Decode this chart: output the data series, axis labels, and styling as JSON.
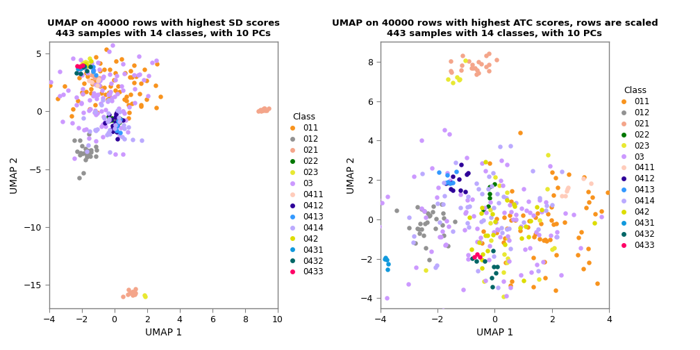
{
  "title1": "UMAP on 40000 rows with highest SD scores\n443 samples with 14 classes, with 10 PCs",
  "title2": "UMAP on 40000 rows with highest ATC scores, rows are scaled\n443 samples with 14 classes, with 10 PCs",
  "xlabel": "UMAP 1",
  "ylabel": "UMAP 2",
  "classes": [
    "011",
    "012",
    "021",
    "022",
    "023",
    "03",
    "0411",
    "0412",
    "0413",
    "0414",
    "042",
    "0431",
    "0432",
    "0433"
  ],
  "colors": {
    "011": "#F8931D",
    "012": "#929292",
    "021": "#F4A58A",
    "022": "#007700",
    "023": "#E8E832",
    "03": "#CC99FF",
    "0411": "#FFCCBB",
    "0412": "#2E0099",
    "0413": "#3399FF",
    "0414": "#BBAAFF",
    "042": "#DDDD00",
    "0431": "#1199DD",
    "0432": "#006666",
    "0433": "#FF0066"
  },
  "plot1": {
    "xlim": [
      -4,
      10
    ],
    "ylim": [
      -17,
      6
    ],
    "xticks": [
      -4,
      -2,
      0,
      2,
      4,
      6,
      8,
      10
    ],
    "yticks": [
      -15,
      -10,
      -5,
      0,
      5
    ]
  },
  "plot2": {
    "xlim": [
      -4,
      4
    ],
    "ylim": [
      -4.5,
      9
    ],
    "xticks": [
      -4,
      -2,
      0,
      2,
      4
    ],
    "yticks": [
      -4,
      -2,
      0,
      2,
      4,
      6,
      8
    ]
  },
  "point_size": 22,
  "bg_color": "#FFFFFF",
  "panel_bg": "#FFFFFF",
  "border_color": "#808080"
}
